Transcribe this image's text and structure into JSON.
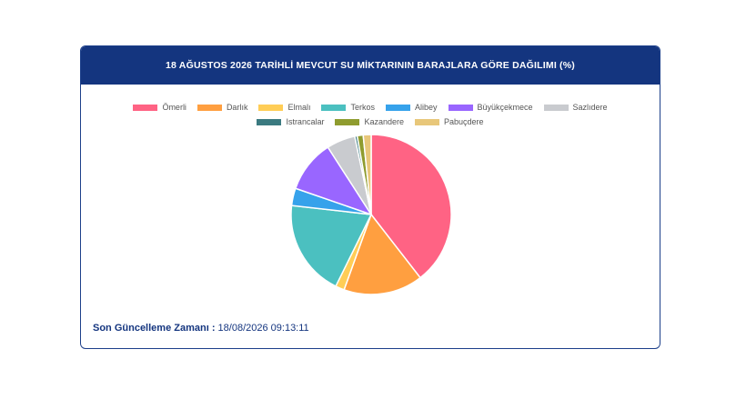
{
  "header": {
    "title": "18 AĞUSTOS 2026 TARİHLİ MEVCUT SU MİKTARININ BARAJLARA GÖRE DAĞILIMI (%)"
  },
  "footer": {
    "label": "Son Güncelleme Zamanı :",
    "value": "18/08/2026 09:13:11"
  },
  "chart_data": {
    "type": "pie",
    "title": "18 AĞUSTOS 2026 TARİHLİ MEVCUT SU MİKTARININ BARAJLARA GÖRE DAĞILIMI (%)",
    "legend_position": "top",
    "slices": [
      {
        "label": "Ömerli",
        "value": 39.5,
        "color": "#ff6384"
      },
      {
        "label": "Darlık",
        "value": 16.0,
        "color": "#ff9f40"
      },
      {
        "label": "Elmalı",
        "value": 1.8,
        "color": "#ffcd56"
      },
      {
        "label": "Terkos",
        "value": 19.5,
        "color": "#4bc0c0"
      },
      {
        "label": "Alibey",
        "value": 3.5,
        "color": "#36a2eb"
      },
      {
        "label": "Büyükçekmece",
        "value": 10.6,
        "color": "#9966ff"
      },
      {
        "label": "Sazlıdere",
        "value": 5.8,
        "color": "#c9cbcf"
      },
      {
        "label": "Istrancalar",
        "value": 0.5,
        "color": "#3b7a80"
      },
      {
        "label": "Kazandere",
        "value": 1.2,
        "color": "#8f9c2f"
      },
      {
        "label": "Pabuçdere",
        "value": 1.6,
        "color": "#e8c77a"
      }
    ]
  }
}
